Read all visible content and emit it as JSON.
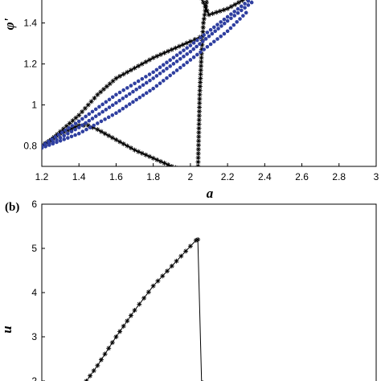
{
  "chart_data": [
    {
      "panel": "",
      "type": "line",
      "xlabel": "a",
      "ylabel": "φ'",
      "xlim": [
        1.2,
        3.0
      ],
      "ylim": [
        0.7,
        1.52
      ],
      "x_ticks": [
        "1.2",
        "1.4",
        "1.6",
        "1.8",
        "2",
        "2.2",
        "2.4",
        "2.6",
        "2.8",
        "3"
      ],
      "y_ticks": [
        "0.8",
        "1",
        "1.2",
        "1.4"
      ],
      "grid": false,
      "series": [
        {
          "color": "#000000",
          "marker": "star",
          "x": [
            1.2,
            1.25,
            1.3,
            1.35,
            1.4,
            1.45,
            1.5,
            1.55,
            1.6,
            1.7,
            1.8,
            1.9,
            2.0,
            2.05
          ],
          "y": [
            0.8,
            0.83,
            0.87,
            0.91,
            0.95,
            1.0,
            1.05,
            1.09,
            1.13,
            1.18,
            1.23,
            1.27,
            1.31,
            1.33
          ]
        },
        {
          "color": "#000000",
          "marker": "star",
          "x": [
            1.2,
            1.3,
            1.4,
            1.45,
            1.5,
            1.6,
            1.7,
            1.8,
            1.9,
            2.0,
            2.04
          ],
          "y": [
            0.8,
            0.86,
            0.9,
            0.9,
            0.88,
            0.83,
            0.78,
            0.74,
            0.7,
            0.67,
            0.66
          ]
        },
        {
          "color": "#000000",
          "marker": "star",
          "x": [
            2.04,
            2.05,
            2.06,
            2.07,
            2.09
          ],
          "y": [
            0.66,
            1.05,
            1.25,
            1.4,
            1.52
          ]
        },
        {
          "color": "#000000",
          "marker": "star",
          "x": [
            2.05,
            2.1,
            2.2,
            2.3
          ],
          "y": [
            1.54,
            1.44,
            1.47,
            1.52
          ]
        },
        {
          "color": "#2f3fa0",
          "marker": "dot",
          "x": [
            1.2,
            1.4,
            1.6,
            1.8,
            2.0,
            2.2,
            2.33
          ],
          "y": [
            0.79,
            0.89,
            1.01,
            1.13,
            1.26,
            1.41,
            1.5
          ]
        },
        {
          "color": "#2f3fa0",
          "marker": "dot",
          "x": [
            1.2,
            1.4,
            1.6,
            1.8,
            2.0,
            2.2,
            2.33
          ],
          "y": [
            0.8,
            0.92,
            1.05,
            1.16,
            1.29,
            1.43,
            1.52
          ]
        },
        {
          "color": "#2f3fa0",
          "marker": "dot",
          "x": [
            1.2,
            1.4,
            1.6,
            1.8,
            2.0,
            2.2,
            2.3
          ],
          "y": [
            0.79,
            0.86,
            0.96,
            1.08,
            1.22,
            1.36,
            1.45
          ]
        }
      ]
    },
    {
      "panel": "(b)",
      "type": "line",
      "xlabel": "",
      "ylabel": "u",
      "xlim": [
        1.2,
        3.0
      ],
      "ylim": [
        2.0,
        6.0
      ],
      "y_ticks": [
        "2",
        "3",
        "4",
        "5",
        "6"
      ],
      "grid": false,
      "series": [
        {
          "color": "#000000",
          "marker": "star",
          "x": [
            1.44,
            1.5,
            1.6,
            1.7,
            1.8,
            1.9,
            2.0,
            2.03,
            2.04
          ],
          "y": [
            2.0,
            2.35,
            3.0,
            3.6,
            4.15,
            4.6,
            5.05,
            5.18,
            5.2
          ]
        },
        {
          "color": "#000000",
          "marker": "none",
          "x": [
            2.04,
            2.06,
            2.07
          ],
          "y": [
            5.2,
            2.0,
            2.0
          ]
        }
      ]
    }
  ]
}
